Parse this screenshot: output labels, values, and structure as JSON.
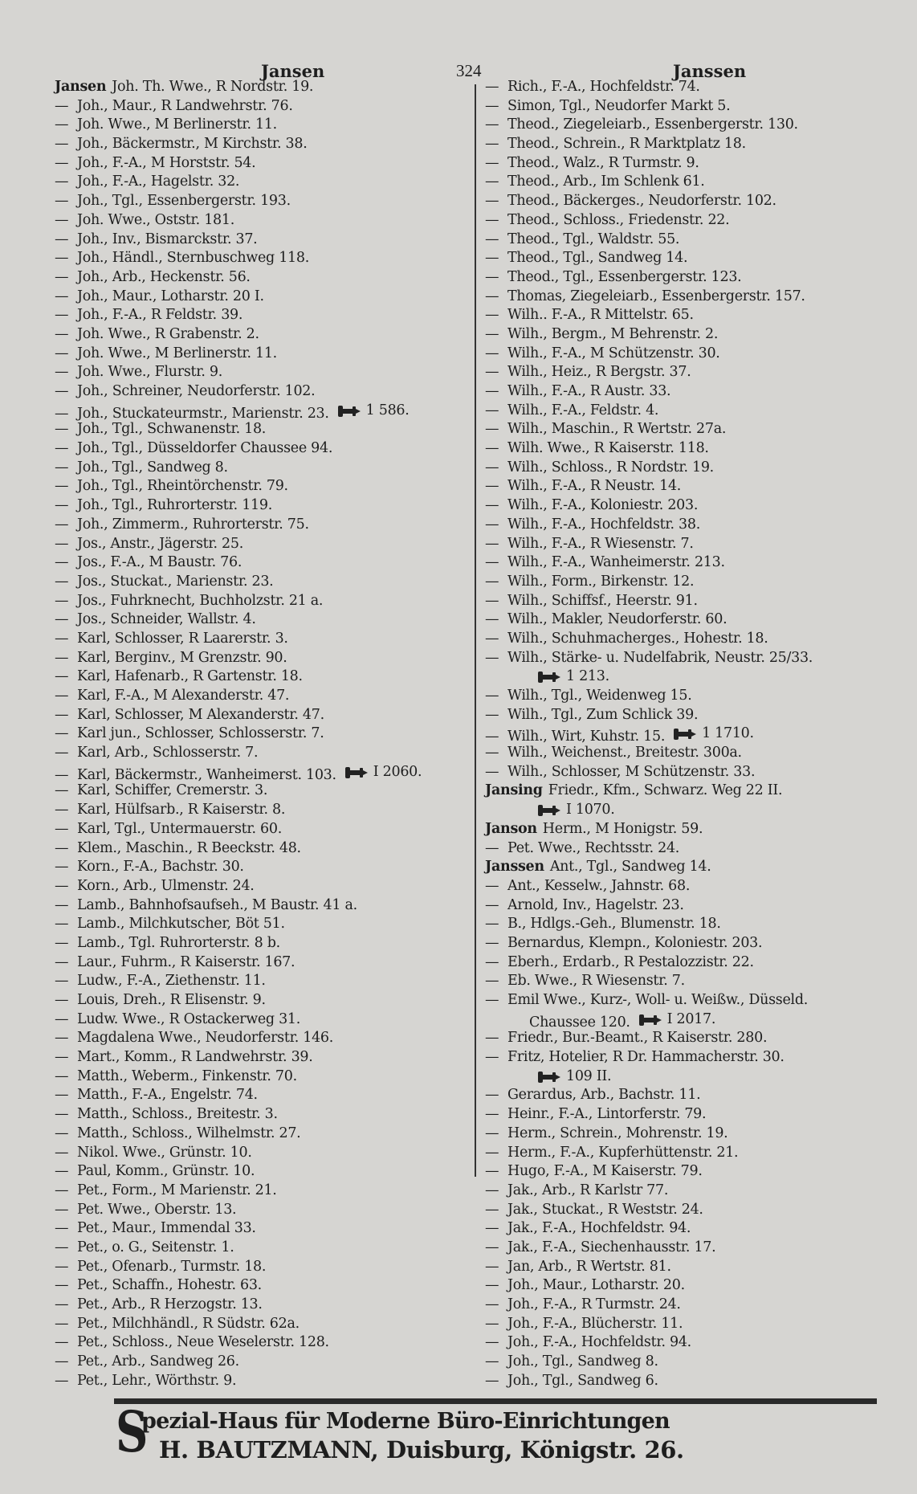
{
  "header": {
    "left": "Jansen",
    "page_number": "324",
    "right": "Janssen"
  },
  "phone_icon": "telephone-icon",
  "left_column": [
    {
      "lead": "Jansen",
      "surname": true,
      "text": "Joh. Th. Wwe., R Nordstr. 19."
    },
    {
      "lead": "—",
      "text": "Joh., Maur., R Landwehrstr. 76."
    },
    {
      "lead": "—",
      "text": "Joh. Wwe., M Berlinerstr. 11."
    },
    {
      "lead": "—",
      "text": "Joh., Bäckermstr., M Kirchstr. 38."
    },
    {
      "lead": "—",
      "text": "Joh., F.-A., M Horststr. 54."
    },
    {
      "lead": "—",
      "text": "Joh., F.-A., Hagelstr. 32."
    },
    {
      "lead": "—",
      "text": "Joh., Tgl., Essenbergerstr. 193."
    },
    {
      "lead": "—",
      "text": "Joh. Wwe., Oststr. 181."
    },
    {
      "lead": "—",
      "text": "Joh., Inv., Bismarckstr. 37."
    },
    {
      "lead": "—",
      "text": "Joh., Händl., Sternbuschweg 118."
    },
    {
      "lead": "—",
      "text": "Joh., Arb., Heckenstr. 56."
    },
    {
      "lead": "—",
      "text": "Joh., Maur., Lotharstr. 20 I."
    },
    {
      "lead": "—",
      "text": "Joh., F.-A., R Feldstr. 39."
    },
    {
      "lead": "—",
      "text": "Joh. Wwe., R Grabenstr. 2."
    },
    {
      "lead": "—",
      "text": "Joh. Wwe., M Berlinerstr. 11."
    },
    {
      "lead": "—",
      "text": "Joh. Wwe., Flurstr. 9."
    },
    {
      "lead": "—",
      "text": "Joh., Schreiner, Neudorferstr. 102."
    },
    {
      "lead": "—",
      "text": "Joh., Stuckateurmstr., Marienstr. 23.",
      "phone": "1 586."
    },
    {
      "lead": "—",
      "text": "Joh., Tgl., Schwanenstr. 18."
    },
    {
      "lead": "—",
      "text": "Joh., Tgl., Düsseldorfer Chaussee 94."
    },
    {
      "lead": "—",
      "text": "Joh., Tgl., Sandweg 8."
    },
    {
      "lead": "—",
      "text": "Joh., Tgl., Rheintörchenstr. 79."
    },
    {
      "lead": "—",
      "text": "Joh., Tgl., Ruhrorterstr. 119."
    },
    {
      "lead": "—",
      "text": "Joh., Zimmerm., Ruhrorterstr. 75."
    },
    {
      "lead": "—",
      "text": "Jos., Anstr., Jägerstr. 25."
    },
    {
      "lead": "—",
      "text": "Jos., F.-A., M Baustr. 76."
    },
    {
      "lead": "—",
      "text": "Jos., Stuckat., Marienstr. 23."
    },
    {
      "lead": "—",
      "text": "Jos., Fuhrknecht, Buchholzstr. 21 a."
    },
    {
      "lead": "—",
      "text": "Jos., Schneider, Wallstr. 4."
    },
    {
      "lead": "—",
      "text": "Karl, Schlosser, R Laarerstr. 3."
    },
    {
      "lead": "—",
      "text": "Karl, Berginv., M Grenzstr. 90."
    },
    {
      "lead": "—",
      "text": "Karl, Hafenarb., R Gartenstr. 18."
    },
    {
      "lead": "—",
      "text": "Karl, F.-A., M Alexanderstr. 47."
    },
    {
      "lead": "—",
      "text": "Karl, Schlosser, M Alexanderstr. 47."
    },
    {
      "lead": "—",
      "text": "Karl jun., Schlosser, Schlosserstr. 7."
    },
    {
      "lead": "—",
      "text": "Karl, Arb., Schlosserstr. 7."
    },
    {
      "lead": "—",
      "text": "Karl, Bäckermstr., Wanheimerst. 103.",
      "phone": "I 2060."
    },
    {
      "lead": "—",
      "text": "Karl, Schiffer, Cremerstr. 3."
    },
    {
      "lead": "—",
      "text": "Karl, Hülfsarb., R Kaiserstr. 8."
    },
    {
      "lead": "—",
      "text": "Karl, Tgl., Untermauerstr. 60."
    },
    {
      "lead": "—",
      "text": "Klem., Maschin., R Beeckstr. 48."
    },
    {
      "lead": "—",
      "text": "Korn., F.-A., Bachstr. 30."
    },
    {
      "lead": "—",
      "text": "Korn., Arb., Ulmenstr. 24."
    },
    {
      "lead": "—",
      "text": "Lamb., Bahnhofsaufseh., M Baustr. 41 a."
    },
    {
      "lead": "—",
      "text": "Lamb., Milchkutscher, Böt 51."
    },
    {
      "lead": "—",
      "text": "Lamb., Tgl. Ruhrorterstr. 8 b."
    },
    {
      "lead": "—",
      "text": "Laur., Fuhrm., R Kaiserstr. 167."
    },
    {
      "lead": "—",
      "text": "Ludw., F.-A., Ziethenstr. 11."
    },
    {
      "lead": "—",
      "text": "Louis, Dreh., R Elisenstr. 9."
    },
    {
      "lead": "—",
      "text": "Ludw. Wwe., R Ostackerweg 31."
    },
    {
      "lead": "—",
      "text": "Magdalena Wwe., Neudorferstr. 146."
    },
    {
      "lead": "—",
      "text": "Mart., Komm., R Landwehrstr. 39."
    },
    {
      "lead": "—",
      "text": "Matth., Weberm., Finkenstr. 70."
    },
    {
      "lead": "—",
      "text": "Matth., F.-A., Engelstr. 74."
    },
    {
      "lead": "—",
      "text": "Matth., Schloss., Breitestr. 3."
    },
    {
      "lead": "—",
      "text": "Matth., Schloss., Wilhelmstr. 27."
    },
    {
      "lead": "—",
      "text": "Nikol. Wwe., Grünstr. 10."
    },
    {
      "lead": "—",
      "text": "Paul, Komm., Grünstr. 10."
    },
    {
      "lead": "—",
      "text": "Pet., Form., M Marienstr. 21."
    },
    {
      "lead": "—",
      "text": "Pet. Wwe., Oberstr. 13."
    },
    {
      "lead": "—",
      "text": "Pet., Maur., Immendal 33."
    },
    {
      "lead": "—",
      "text": "Pet., o. G., Seitenstr. 1."
    },
    {
      "lead": "—",
      "text": "Pet., Ofenarb., Turmstr. 18."
    },
    {
      "lead": "—",
      "text": "Pet., Schaffn., Hohestr. 63."
    },
    {
      "lead": "—",
      "text": "Pet., Arb., R Herzogstr. 13."
    },
    {
      "lead": "—",
      "text": "Pet., Milchhändl., R Südstr. 62a."
    },
    {
      "lead": "—",
      "text": "Pet., Schloss., Neue Weselerstr. 128."
    },
    {
      "lead": "—",
      "text": "Pet., Arb., Sandweg 26."
    },
    {
      "lead": "—",
      "text": "Pet., Lehr., Wörthstr. 9."
    }
  ],
  "right_column": [
    {
      "lead": "—",
      "text": "Rich., F.-A., Hochfeldstr. 74."
    },
    {
      "lead": "—",
      "text": "Simon, Tgl., Neudorfer Markt 5."
    },
    {
      "lead": "—",
      "text": "Theod., Ziegeleiarb., Essenbergerstr. 130."
    },
    {
      "lead": "—",
      "text": "Theod., Schrein., R Marktplatz 18."
    },
    {
      "lead": "—",
      "text": "Theod., Walz., R Turmstr. 9."
    },
    {
      "lead": "—",
      "text": "Theod., Arb., Im Schlenk 61."
    },
    {
      "lead": "—",
      "text": "Theod., Bäckerges., Neudorferstr. 102."
    },
    {
      "lead": "—",
      "text": "Theod., Schloss., Friedenstr. 22."
    },
    {
      "lead": "—",
      "text": "Theod., Tgl., Waldstr. 55."
    },
    {
      "lead": "—",
      "text": "Theod., Tgl., Sandweg 14."
    },
    {
      "lead": "—",
      "text": "Theod., Tgl., Essenbergerstr. 123."
    },
    {
      "lead": "—",
      "text": "Thomas, Ziegeleiarb., Essenbergerstr. 157."
    },
    {
      "lead": "—",
      "text": "Wilh.. F.-A., R Mittelstr. 65."
    },
    {
      "lead": "—",
      "text": "Wilh., Bergm., M Behrenstr. 2."
    },
    {
      "lead": "—",
      "text": "Wilh., F.-A., M Schützenstr. 30."
    },
    {
      "lead": "—",
      "text": "Wilh., Heiz., R Bergstr. 37."
    },
    {
      "lead": "—",
      "text": "Wilh., F.-A., R Austr. 33."
    },
    {
      "lead": "—",
      "text": "Wilh., F.-A., Feldstr. 4."
    },
    {
      "lead": "—",
      "text": "Wilh., Maschin., R Wertstr. 27a."
    },
    {
      "lead": "—",
      "text": "Wilh. Wwe., R Kaiserstr. 118."
    },
    {
      "lead": "—",
      "text": "Wilh., Schloss., R Nordstr. 19."
    },
    {
      "lead": "—",
      "text": "Wilh., F.-A., R Neustr. 14."
    },
    {
      "lead": "—",
      "text": "Wilh., F.-A., Koloniestr. 203."
    },
    {
      "lead": "—",
      "text": "Wilh., F.-A., Hochfeldstr. 38."
    },
    {
      "lead": "—",
      "text": "Wilh., F.-A., R Wiesenstr. 7."
    },
    {
      "lead": "—",
      "text": "Wilh., F.-A., Wanheimerstr. 213."
    },
    {
      "lead": "—",
      "text": "Wilh., Form., Birkenstr. 12."
    },
    {
      "lead": "—",
      "text": "Wilh., Schiffsf., Heerstr. 91."
    },
    {
      "lead": "—",
      "text": "Wilh., Makler, Neudorferstr. 60."
    },
    {
      "lead": "—",
      "text": "Wilh., Schuhmacherges., Hohestr. 18."
    },
    {
      "lead": "—",
      "text": "Wilh., Stärke- u. Nudelfabrik, Neustr. 25/33."
    },
    {
      "lead": "",
      "indent": true,
      "text": "",
      "phone": "1 213."
    },
    {
      "lead": "—",
      "text": "Wilh., Tgl., Weidenweg 15."
    },
    {
      "lead": "—",
      "text": "Wilh., Tgl., Zum Schlick 39."
    },
    {
      "lead": "—",
      "text": "Wilh., Wirt, Kuhstr. 15.",
      "phone": "1 1710."
    },
    {
      "lead": "—",
      "text": "Wilh., Weichenst., Breitestr. 300a."
    },
    {
      "lead": "—",
      "text": "Wilh., Schlosser, M Schützenstr. 33."
    },
    {
      "lead": "Jansing",
      "surname": true,
      "text": "Friedr., Kfm., Schwarz. Weg 22 II."
    },
    {
      "lead": "",
      "indent": true,
      "text": "",
      "phone": "I 1070."
    },
    {
      "lead": "Janson",
      "surname": true,
      "text": "Herm., M Honigstr. 59."
    },
    {
      "lead": "—",
      "text": "Pet. Wwe., Rechtsstr. 24."
    },
    {
      "lead": "Janssen",
      "surname": true,
      "text": "Ant., Tgl., Sandweg 14."
    },
    {
      "lead": "—",
      "text": "Ant., Kesselw., Jahnstr. 68."
    },
    {
      "lead": "—",
      "text": "Arnold, Inv., Hagelstr. 23."
    },
    {
      "lead": "—",
      "text": "B., Hdlgs.-Geh., Blumenstr. 18."
    },
    {
      "lead": "—",
      "text": "Bernardus, Klempn., Koloniestr. 203."
    },
    {
      "lead": "—",
      "text": "Eberh., Erdarb., R Pestalozzistr. 22."
    },
    {
      "lead": "—",
      "text": "Eb. Wwe., R Wiesenstr. 7."
    },
    {
      "lead": "—",
      "text": "Emil Wwe., Kurz-, Woll- u. Weißw., Düsseld."
    },
    {
      "lead": "",
      "indent": true,
      "text": "Chaussee 120.",
      "phone": "I 2017."
    },
    {
      "lead": "—",
      "text": "Friedr., Bur.-Beamt., R Kaiserstr. 280."
    },
    {
      "lead": "—",
      "text": "Fritz, Hotelier, R Dr. Hammacherstr. 30."
    },
    {
      "lead": "",
      "indent": true,
      "text": "",
      "phone": "109 II."
    },
    {
      "lead": "—",
      "text": "Gerardus, Arb., Bachstr. 11."
    },
    {
      "lead": "—",
      "text": "Heinr., F.-A., Lintorferstr. 79."
    },
    {
      "lead": "—",
      "text": "Herm., Schrein., Mohrenstr. 19."
    },
    {
      "lead": "—",
      "text": "Herm., F.-A., Kupferhüttenstr. 21."
    },
    {
      "lead": "—",
      "text": "Hugo, F.-A., M Kaiserstr. 79."
    },
    {
      "lead": "—",
      "text": "Jak., Arb., R Karlstr 77."
    },
    {
      "lead": "—",
      "text": "Jak., Stuckat., R Weststr. 24."
    },
    {
      "lead": "—",
      "text": "Jak., F.-A., Hochfeldstr. 94."
    },
    {
      "lead": "—",
      "text": "Jak., F.-A., Siechenhausstr. 17."
    },
    {
      "lead": "—",
      "text": "Jan, Arb., R Wertstr. 81."
    },
    {
      "lead": "—",
      "text": "Joh., Maur., Lotharstr. 20."
    },
    {
      "lead": "—",
      "text": "Joh., F.-A., R Turmstr. 24."
    },
    {
      "lead": "—",
      "text": "Joh., F.-A., Blücherstr. 11."
    },
    {
      "lead": "—",
      "text": "Joh., F.-A., Hochfeldstr. 94."
    },
    {
      "lead": "—",
      "text": "Joh., Tgl., Sandweg 8."
    },
    {
      "lead": "—",
      "text": "Joh., Tgl., Sandweg 6."
    }
  ],
  "advertisement": {
    "initial": "S",
    "line1": "pezial-Haus für Moderne Büro-Einrichtungen",
    "line2": "H. BAUTZMANN, Duisburg, Königstr. 26."
  }
}
